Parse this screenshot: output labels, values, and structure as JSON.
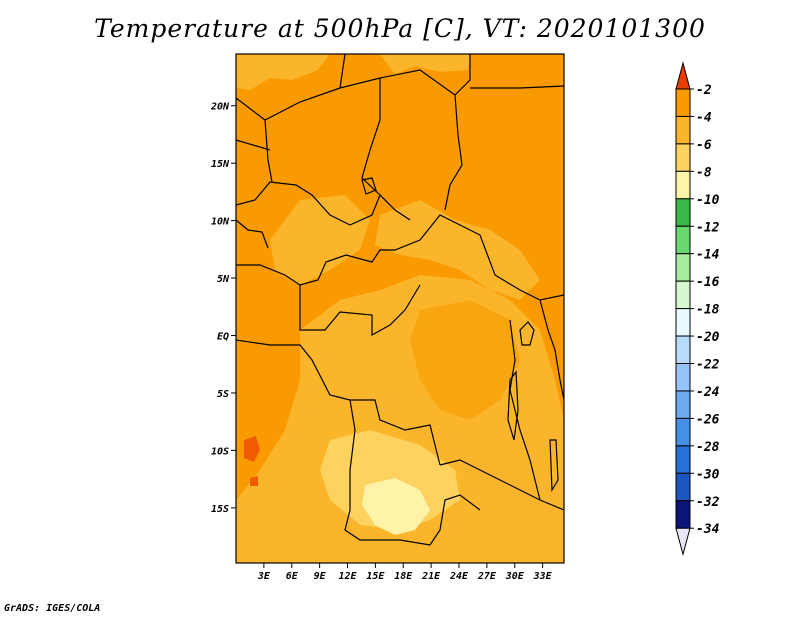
{
  "title": "Temperature at 500hPa [C], VT: 2020101300",
  "credit": "GrADS: IGES/COLA",
  "map": {
    "lat_ticks": [
      "20N",
      "15N",
      "10N",
      "5N",
      "EQ",
      "5S",
      "10S",
      "15S"
    ],
    "lon_ticks": [
      "3E",
      "6E",
      "9E",
      "12E",
      "15E",
      "18E",
      "21E",
      "24E",
      "27E",
      "30E",
      "33E"
    ],
    "lat_range": [
      -19.8,
      24.5
    ],
    "lon_range": [
      0,
      35.3
    ]
  },
  "colorbar": {
    "labels": [
      "-2",
      "-4",
      "-6",
      "-8",
      "-10",
      "-12",
      "-14",
      "-16",
      "-18",
      "-20",
      "-22",
      "-24",
      "-26",
      "-28",
      "-30",
      "-32",
      "-34"
    ],
    "colors": [
      "#f05a00",
      "#f99a00",
      "#fbb52a",
      "#fdd25e",
      "#fff3a8",
      "#3ab84a",
      "#6ad870",
      "#a6ec9e",
      "#d6f8d0",
      "#e8f9ff",
      "#b6dbfd",
      "#94c4f8",
      "#6ea8f0",
      "#4690e8",
      "#2670d8",
      "#1c56c0",
      "#0a3a9e"
    ],
    "top_arrow_color": "#e83c00",
    "bottom_arrow_color": "#e6e6f8",
    "bottom_block_color": "#0b1678"
  }
}
